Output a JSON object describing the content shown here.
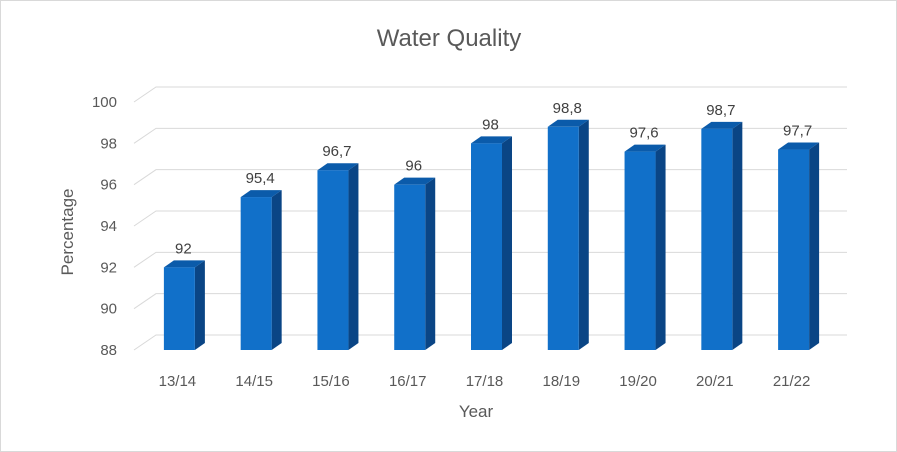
{
  "chart_data": {
    "type": "bar",
    "title": "Water Quality",
    "xlabel": "Year",
    "ylabel": "Percentage",
    "categories": [
      "13/14",
      "14/15",
      "15/16",
      "16/17",
      "17/18",
      "18/19",
      "19/20",
      "20/21",
      "21/22"
    ],
    "values": [
      92,
      95.4,
      96.7,
      96,
      98,
      98.8,
      97.6,
      98.7,
      97.7
    ],
    "data_labels": [
      "92",
      "95,4",
      "96,7",
      "96",
      "98",
      "98,8",
      "97,6",
      "98,7",
      "97,7"
    ],
    "ylim": [
      88,
      100
    ],
    "yticks": [
      88,
      90,
      92,
      94,
      96,
      98,
      100
    ],
    "grid": true,
    "legend": "none",
    "style": "3d-column",
    "colors": {
      "bar_front": "#1170C9",
      "bar_side": "#0A4585",
      "bar_top": "#0B5BAA",
      "grid": "#d9d9d9",
      "text": "#595959"
    }
  }
}
